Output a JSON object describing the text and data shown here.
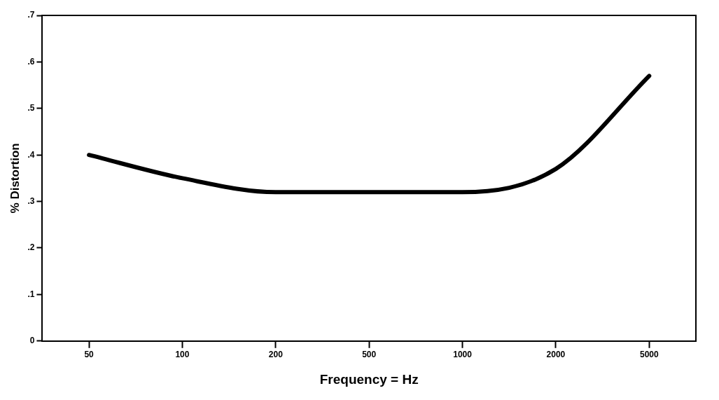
{
  "chart_data": {
    "type": "line",
    "xlabel": "Frequency = Hz",
    "ylabel": "% Distortion",
    "categories": [
      "50",
      "100",
      "200",
      "500",
      "1000",
      "2000",
      "5000"
    ],
    "series": [
      {
        "color": "#000000",
        "values": [
          0.4,
          0.35,
          0.32,
          0.32,
          0.32,
          0.37,
          0.57
        ]
      }
    ],
    "ylim": [
      0,
      0.7
    ],
    "yticks": [
      0,
      {
        "value": 0.1,
        "label": ".1"
      },
      {
        "value": 0.2,
        "label": ".2"
      },
      {
        "value": 0.3,
        "label": ".3"
      },
      {
        "value": 0.4,
        "label": ".4"
      },
      {
        "value": 0.5,
        "label": ".5"
      },
      {
        "value": 0.6,
        "label": ".6"
      },
      {
        "value": 0.7,
        "label": ".7"
      }
    ],
    "grid": false,
    "legend": false,
    "marker": "none",
    "line_style": "solid"
  }
}
